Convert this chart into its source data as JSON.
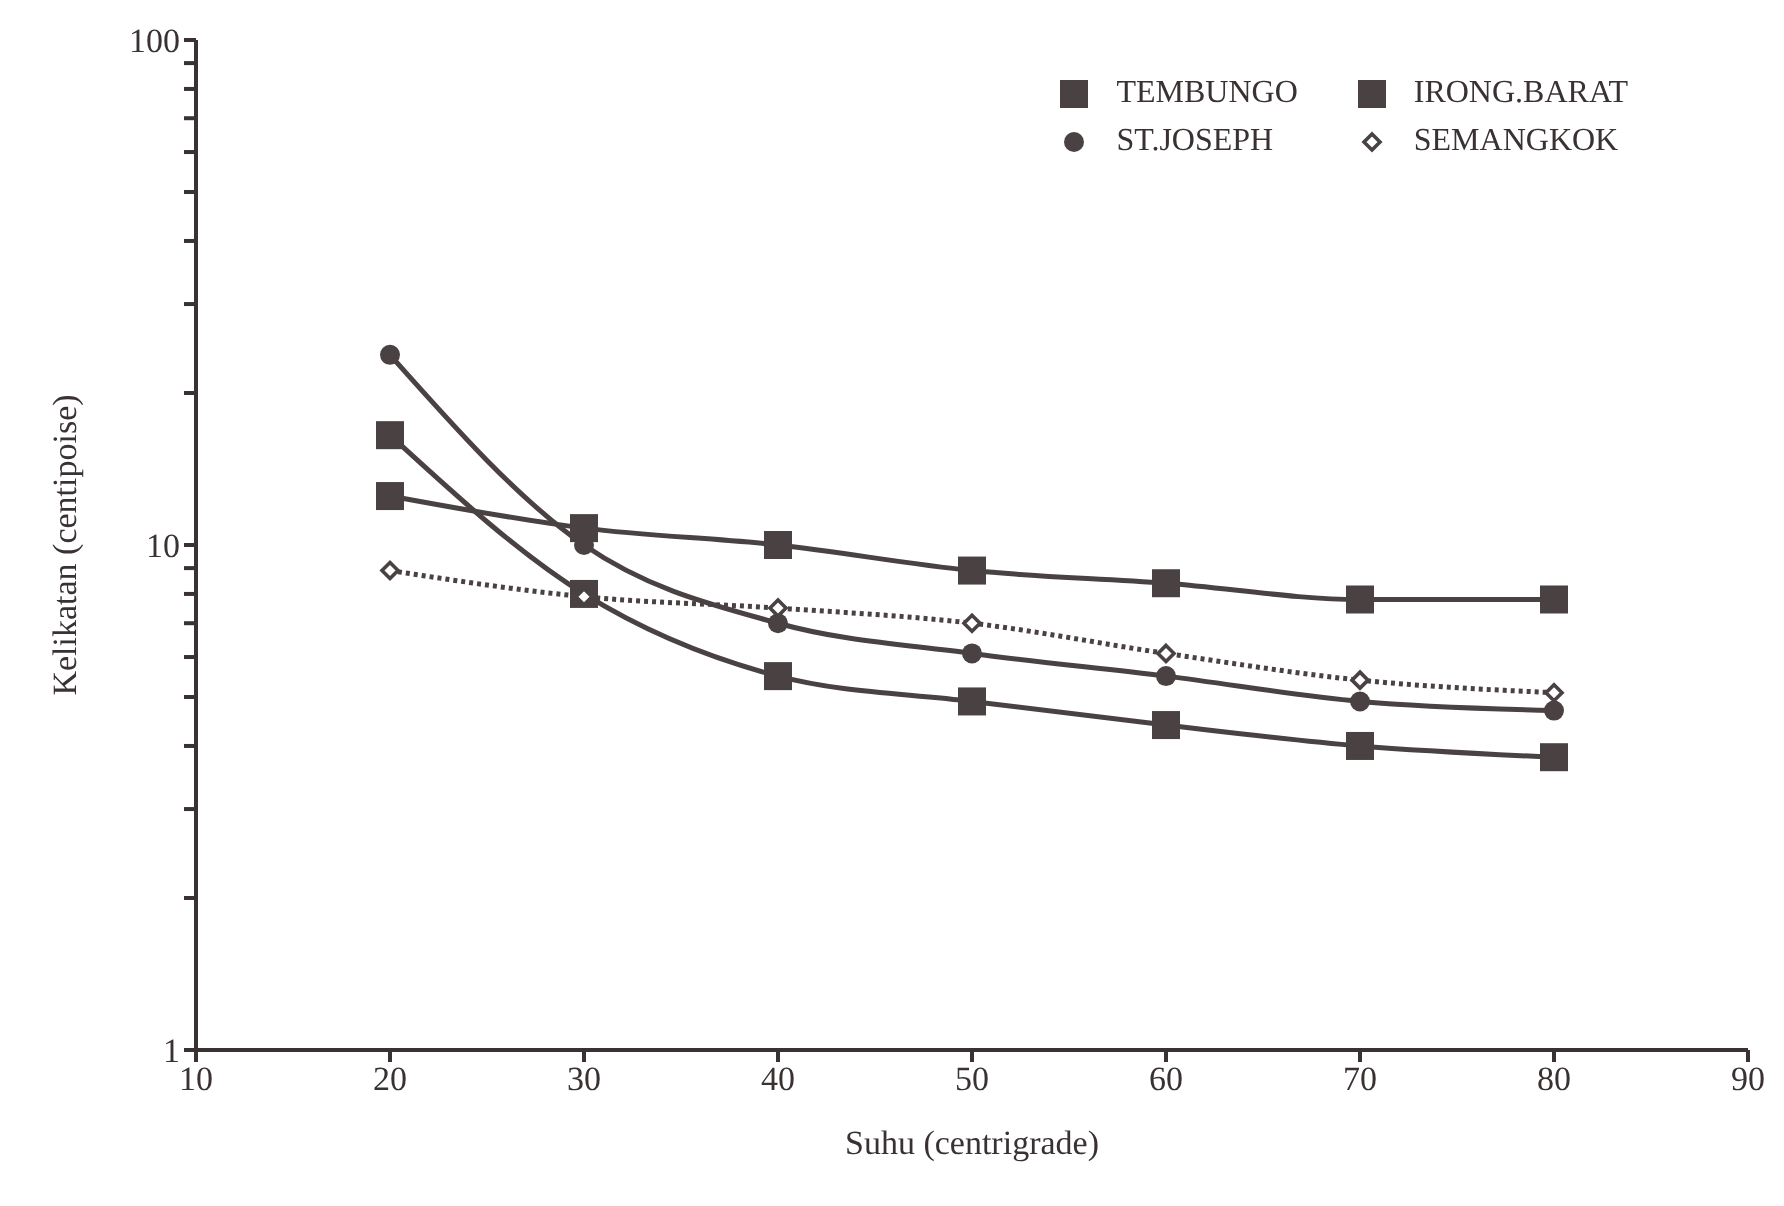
{
  "chart_data": {
    "type": "line",
    "xlabel": "Suhu (centrigrade)",
    "ylabel": "Kelikatan (centipoise)",
    "x": [
      20,
      30,
      40,
      50,
      60,
      70,
      80
    ],
    "series": [
      {
        "name": "TEMBUNGO",
        "color": "#4a4242",
        "marker": "square",
        "values": [
          16.5,
          8.0,
          5.5,
          4.9,
          4.4,
          4.0,
          3.8
        ]
      },
      {
        "name": "IRONG.BARAT",
        "color": "#4a4242",
        "marker": "square",
        "values": [
          12.5,
          10.8,
          10.0,
          8.9,
          8.4,
          7.8,
          7.8
        ]
      },
      {
        "name": "ST.JOSEPH",
        "color": "#4a4242",
        "marker": "circle",
        "values": [
          23.8,
          10.0,
          7.0,
          6.1,
          5.5,
          4.9,
          4.7
        ]
      },
      {
        "name": "SEMANGKOK",
        "color": "#4a4242",
        "marker": "diamond",
        "line_style": "dotted",
        "values": [
          8.9,
          7.9,
          7.5,
          7.0,
          6.1,
          5.4,
          5.1
        ]
      }
    ],
    "log": true,
    "xlim": [
      10,
      90
    ],
    "xticks": [
      10,
      20,
      30,
      40,
      50,
      60,
      70,
      80,
      90
    ],
    "ylim": [
      1,
      100
    ],
    "yticks": [
      1,
      {
        "value": 2,
        "label": null
      },
      {
        "value": 3,
        "label": null
      },
      {
        "value": 4,
        "label": null
      },
      {
        "value": 5,
        "label": null
      },
      {
        "value": 6,
        "label": null
      },
      {
        "value": 7,
        "label": null
      },
      {
        "value": 8,
        "label": null
      },
      {
        "value": 9,
        "label": null
      },
      10,
      {
        "value": 20,
        "label": null
      },
      {
        "value": 30,
        "label": null
      },
      {
        "value": 40,
        "label": null
      },
      {
        "value": 50,
        "label": null
      },
      {
        "value": 60,
        "label": null
      },
      {
        "value": 70,
        "label": null
      },
      {
        "value": 80,
        "label": null
      },
      {
        "value": 90,
        "label": null
      },
      100
    ],
    "grid": false,
    "legend": "top right"
  }
}
